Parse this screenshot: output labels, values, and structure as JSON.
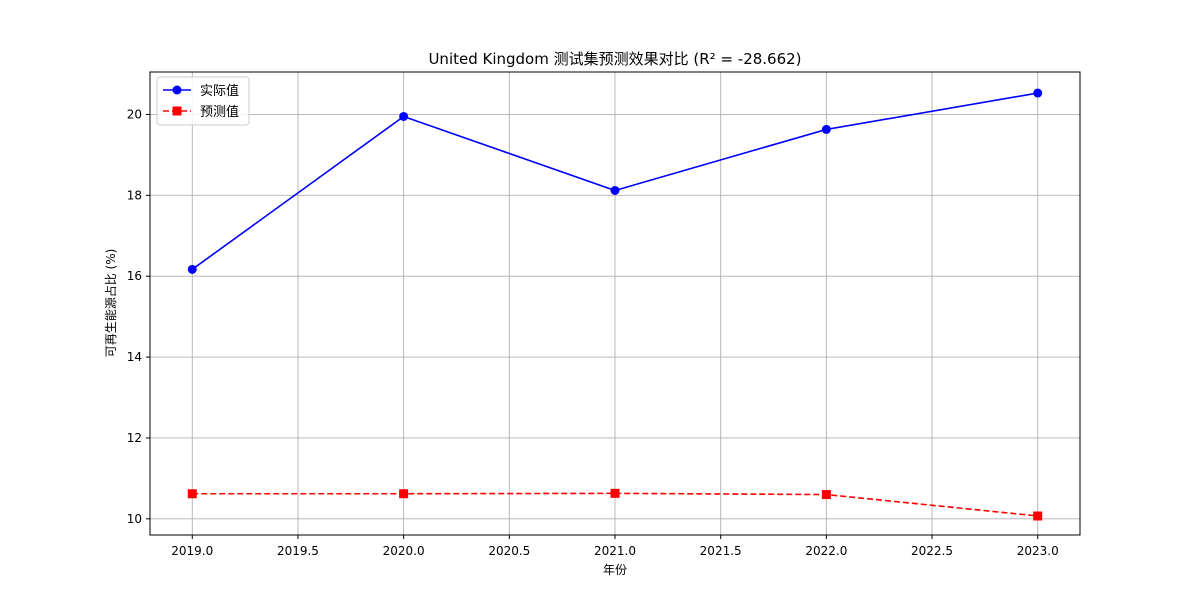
{
  "chart_data": {
    "type": "line",
    "title": "United Kingdom 测试集预测效果对比 (R² = -28.662)",
    "xlabel": "年份",
    "ylabel": "可再生能源占比 (%)",
    "x": [
      2019,
      2020,
      2021,
      2022,
      2023
    ],
    "xlim": [
      2018.8,
      2023.2
    ],
    "ylim": [
      9.6,
      21.05
    ],
    "x_ticks": [
      "2019.0",
      "2019.5",
      "2020.0",
      "2020.5",
      "2021.0",
      "2021.5",
      "2022.0",
      "2022.5",
      "2023.0"
    ],
    "y_ticks": [
      "10",
      "12",
      "14",
      "16",
      "18",
      "20"
    ],
    "grid": true,
    "legend_position": "top-left",
    "series": [
      {
        "name": "实际值",
        "values": [
          16.17,
          19.95,
          18.12,
          19.63,
          20.53
        ],
        "color": "#0000ff",
        "line_style": "solid",
        "marker": "circle"
      },
      {
        "name": "预测值",
        "values": [
          10.62,
          10.62,
          10.63,
          10.6,
          10.07
        ],
        "color": "#ff0000",
        "line_style": "dashed",
        "marker": "square"
      }
    ]
  }
}
